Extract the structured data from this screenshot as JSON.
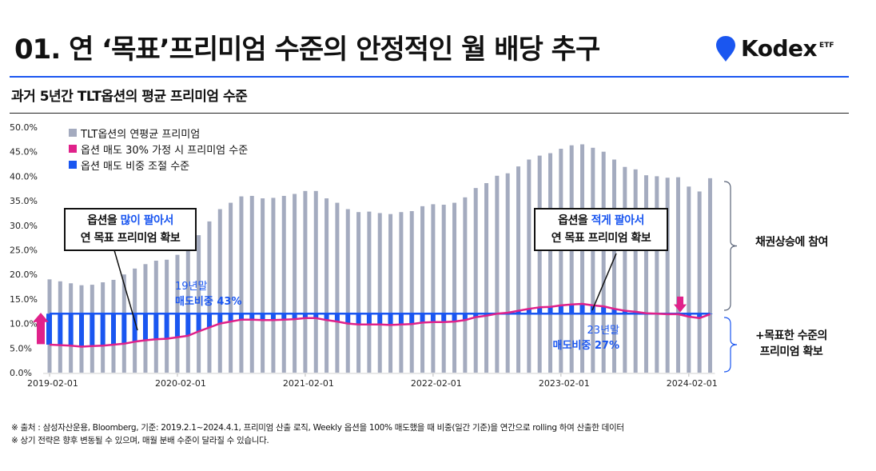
{
  "header": {
    "title": "01. 연 ‘목표’프리미엄 수준의 안정적인 월 배당 추구",
    "logo_text": "Kodex",
    "logo_suffix": "ETF",
    "subtitle": "과거 5년간 TLT옵션의 평균 프리미엄 수준"
  },
  "colors": {
    "accent_blue": "#1a56f0",
    "bar_gray": "#a4abbf",
    "pink": "#e0218a"
  },
  "legend": [
    {
      "label": "TLT옵션의 연평균 프리미엄",
      "color": "#a4abbf"
    },
    {
      "label": "옵션 매도 30% 가정 시 프리미엄 수준",
      "color": "#e0218a"
    },
    {
      "label": "옵션 매도 비중 조절 수준",
      "color": "#1a56f0"
    }
  ],
  "callouts": {
    "left": {
      "line1_prefix": "옵션을 ",
      "line1_highlight": "많이 팔아서",
      "line2": "연 목표 프리미엄 확보"
    },
    "right": {
      "line1_prefix": "옵션을 ",
      "line1_highlight": "적게 팔아서",
      "line2": "연 목표 프리미엄 확보"
    }
  },
  "annotations": {
    "left_line1": "19년말",
    "left_line2": "매도비중 43%",
    "right_line1": "23년말",
    "right_line2": "매도비중 27%"
  },
  "side_labels": {
    "upper": "채권상승에 참여",
    "lower_line1": "+목표한 수준의",
    "lower_line2": "프리미엄 확보"
  },
  "footnotes": [
    "※ 출처 : 삼성자산운용, Bloomberg, 기준: 2019.2.1~2024.4.1, 프리미엄 산출 로직, Weekly 옵션을 100% 매도했을 때 비중(일간 기준)을 연간으로 rolling 하여 산출한 데이터",
    "※ 상기 전략은 향후 변동될 수 있으며, 매월 분배 수준이 달라질 수 있습니다."
  ],
  "chart_data": {
    "type": "bar",
    "title": "과거 5년간 TLT옵션의 평균 프리미엄 수준",
    "ylim": [
      0,
      50
    ],
    "yticks": [
      "0.0%",
      "5.0%",
      "10.0%",
      "15.0%",
      "20.0%",
      "25.0%",
      "30.0%",
      "35.0%",
      "40.0%",
      "45.0%",
      "50.0%"
    ],
    "xticks": [
      "2019-02-01",
      "2020-02-01",
      "2021-02-01",
      "2022-02-01",
      "2023-02-01",
      "2024-02-01"
    ],
    "x_start": "2019-02",
    "frequency": "monthly",
    "target_level": 12.0,
    "series": [
      {
        "name": "TLT옵션의 연평균 프리미엄",
        "kind": "bar",
        "values": [
          19.0,
          18.6,
          18.2,
          17.8,
          17.9,
          18.4,
          18.9,
          20.0,
          21.2,
          22.1,
          22.8,
          23.0,
          24.0,
          25.0,
          28.0,
          30.8,
          33.3,
          34.6,
          35.9,
          36.0,
          35.5,
          35.6,
          36.0,
          36.4,
          37.0,
          37.0,
          35.5,
          34.6,
          33.3,
          32.7,
          32.8,
          32.5,
          32.3,
          32.7,
          32.9,
          33.9,
          34.3,
          34.2,
          34.6,
          35.7,
          37.6,
          38.6,
          40.1,
          40.6,
          42.0,
          43.4,
          44.2,
          44.7,
          45.6,
          46.3,
          46.5,
          45.8,
          45.0,
          43.4,
          41.9,
          41.4,
          40.2,
          40.0,
          39.7,
          39.8,
          37.9,
          36.9,
          39.6
        ]
      },
      {
        "name": "옵션 매도 30% 가정 시 프리미엄 수준",
        "kind": "line",
        "values": [
          5.7,
          5.6,
          5.5,
          5.3,
          5.4,
          5.5,
          5.7,
          5.9,
          6.3,
          6.6,
          6.8,
          6.9,
          7.2,
          7.5,
          8.4,
          9.2,
          10.0,
          10.4,
          10.8,
          10.8,
          10.7,
          10.7,
          10.8,
          10.9,
          11.1,
          11.1,
          10.7,
          10.4,
          10.0,
          9.8,
          9.8,
          9.8,
          9.7,
          9.8,
          9.9,
          10.2,
          10.3,
          10.3,
          10.4,
          10.7,
          11.3,
          11.6,
          12.0,
          12.2,
          12.6,
          13.0,
          13.3,
          13.4,
          13.7,
          13.9,
          14.0,
          13.7,
          13.5,
          13.0,
          12.6,
          12.4,
          12.1,
          12.0,
          11.9,
          11.9,
          11.4,
          11.1,
          11.9
        ]
      },
      {
        "name": "옵션 매도 비중 조절 수준",
        "kind": "line",
        "values": [
          12.0,
          12.0,
          12.0,
          12.0,
          12.0,
          12.0,
          12.0,
          12.0,
          12.0,
          12.0,
          12.0,
          12.0,
          12.0,
          12.0,
          12.0,
          12.0,
          12.0,
          12.0,
          12.0,
          12.0,
          12.0,
          12.0,
          12.0,
          12.0,
          12.0,
          12.0,
          12.0,
          12.0,
          12.0,
          12.0,
          12.0,
          12.0,
          12.0,
          12.0,
          12.0,
          12.0,
          12.0,
          12.0,
          12.0,
          12.0,
          12.0,
          12.0,
          12.0,
          12.0,
          12.0,
          12.0,
          12.0,
          12.0,
          12.0,
          12.0,
          12.0,
          12.0,
          12.0,
          12.0,
          12.0,
          12.0,
          12.0,
          12.0,
          12.0,
          12.0,
          12.0,
          12.0,
          12.0
        ]
      }
    ]
  }
}
